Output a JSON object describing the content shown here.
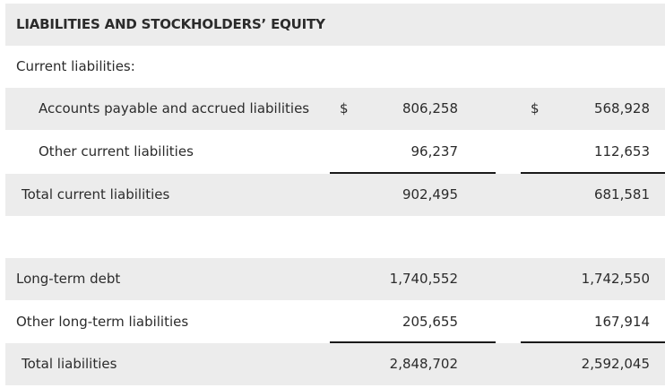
{
  "header": {
    "title": "LIABILITIES AND STOCKHOLDERS’ EQUITY"
  },
  "current_liabilities_label": "Current liabilities:",
  "rows": [
    {
      "label": "Accounts payable and accrued liabilities",
      "currency1": "$",
      "value1": "806,258",
      "currency2": "$",
      "value2": "568,928"
    },
    {
      "label": "Other current liabilities",
      "value1": "96,237",
      "value2": "112,653"
    },
    {
      "label": "Total current liabilities",
      "value1": "902,495",
      "value2": "681,581"
    },
    {
      "label": "Long-term debt",
      "value1": "1,740,552",
      "value2": "1,742,550"
    },
    {
      "label": "Other long-term liabilities",
      "value1": "205,655",
      "value2": "167,914"
    },
    {
      "label": "Total liabilities",
      "value1": "2,848,702",
      "value2": "2,592,045"
    }
  ]
}
